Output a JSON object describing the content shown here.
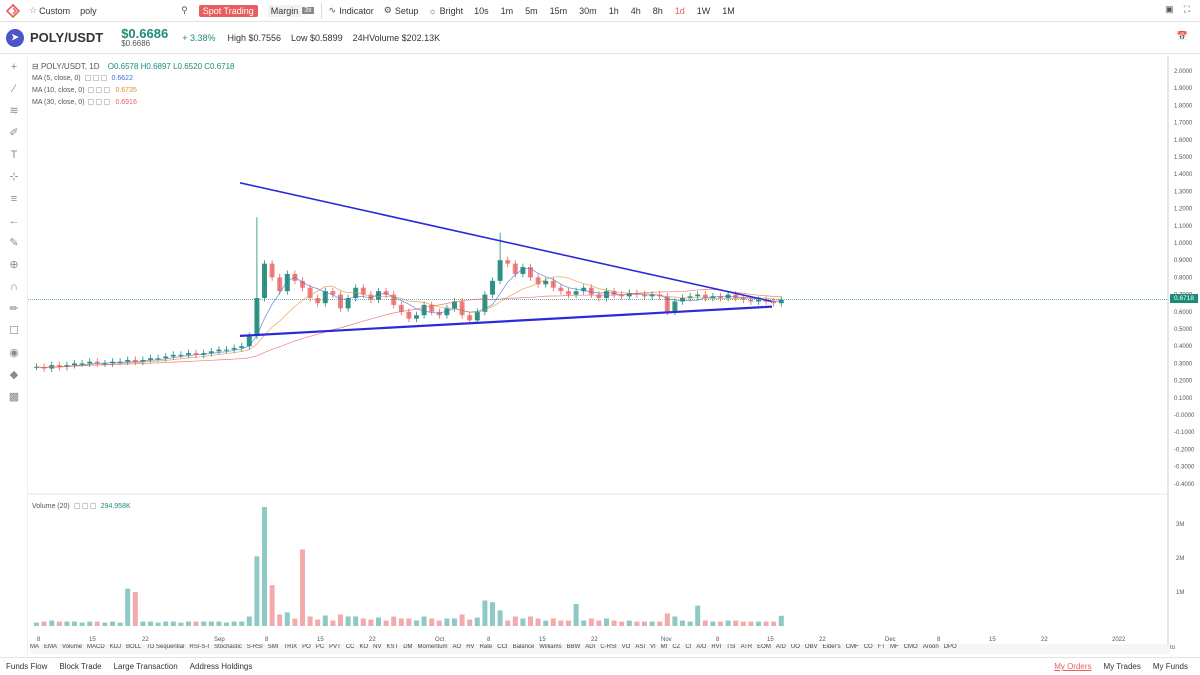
{
  "toolbar": {
    "custom_label": "Custom",
    "search_value": "poly",
    "spot_label": "Spot Trading",
    "margin_label": "Margin",
    "margin_suffix": "3x",
    "indicator_label": "Indicator",
    "setup_label": "Setup",
    "bright_label": "Bright",
    "timeframes": [
      "10s",
      "1m",
      "5m",
      "15m",
      "30m",
      "1h",
      "4h",
      "8h",
      "1d",
      "1W",
      "1M"
    ],
    "active_timeframe": "1d"
  },
  "header": {
    "pair": "POLY/USDT",
    "price": "$0.6686",
    "price_sub": "$0.6686",
    "change": "+ 3.38%",
    "high": "High $0.7556",
    "low": "Low $0.5899",
    "volume": "24HVolume $202.13K"
  },
  "legend": {
    "title": "POLY/USDT, 1D",
    "ohlc": "O0.6578  H0.6897  L0.6520  C0.6718",
    "ma5": {
      "label": "MA (5, close, 0)",
      "value": "0.6622",
      "color": "#3b6fd8"
    },
    "ma10": {
      "label": "MA (10, close, 0)",
      "value": "0.6735",
      "color": "#e0902a"
    },
    "ma30": {
      "label": "MA (30, close, 0)",
      "value": "0.6916",
      "color": "#e85d5d"
    },
    "volume_label": "Volume (20)",
    "volume_value": "294.958K"
  },
  "price_axis": [
    "2.0000",
    "1.9000",
    "1.8000",
    "1.7000",
    "1.6000",
    "1.5000",
    "1.4000",
    "1.3000",
    "1.2000",
    "1.1000",
    "1.0000",
    "0.9000",
    "0.8000",
    "0.7000",
    "0.6000",
    "0.5000",
    "0.4000",
    "0.3000",
    "0.2000",
    "0.1000",
    "-0.0000",
    "-0.1000",
    "-0.2000",
    "-0.3000",
    "-0.4000"
  ],
  "current_price_label": "0.6718",
  "volume_axis": [
    "3M",
    "2M",
    "1M"
  ],
  "date_axis": [
    "8",
    "15",
    "22",
    "Sep",
    "8",
    "15",
    "22",
    "Oct",
    "8",
    "15",
    "22",
    "Nov",
    "8",
    "15",
    "22",
    "Dec",
    "8",
    "15",
    "22",
    "2022"
  ],
  "axis_controls": [
    "%",
    "log",
    "auto"
  ],
  "indicators": [
    "MA",
    "EMA",
    "Volume",
    "MACD",
    "KDJ",
    "BOLL",
    "TD Sequential",
    "RSI-S-I",
    "Stochastic",
    "S-RSI",
    "SMI",
    "TRIX",
    "PO",
    "PC",
    "PVT",
    "CC",
    "KO",
    "NV",
    "KST",
    "DM",
    "Momentum",
    "AO",
    "HV",
    "Rate",
    "CCI",
    "Balance",
    "Williams",
    "BBW",
    "ADI",
    "C-RSI",
    "VO",
    "ASI",
    "VI",
    "MI",
    "CZ",
    "CI",
    "A/D",
    "RVI",
    "TSI",
    "ATR",
    "EOM",
    "A/D",
    "UO",
    "OBV",
    "Elder's",
    "CMF",
    "CO",
    "FT",
    "MF",
    "CMO",
    "Aroon",
    "DPO"
  ],
  "bottom": {
    "left": [
      "Funds Flow",
      "Block Trade",
      "Large Transaction",
      "Address Holdings"
    ],
    "right": [
      "My Orders",
      "My Trades",
      "My Funds"
    ],
    "active": "My Orders"
  },
  "colors": {
    "up": "#1e8a7a",
    "down": "#e85d5d",
    "trend": "#2b2bd8",
    "accent": "#e85d5d"
  },
  "chart_data": {
    "type": "candlestick",
    "title": "POLY/USDT, 1D",
    "ylim": [
      -0.4,
      2.0
    ],
    "candles_close_approx": [
      0.28,
      0.27,
      0.29,
      0.28,
      0.29,
      0.3,
      0.3,
      0.31,
      0.3,
      0.3,
      0.31,
      0.31,
      0.32,
      0.31,
      0.32,
      0.33,
      0.33,
      0.34,
      0.35,
      0.35,
      0.36,
      0.35,
      0.36,
      0.37,
      0.38,
      0.38,
      0.39,
      0.4,
      0.46,
      0.68,
      0.88,
      0.8,
      0.72,
      0.82,
      0.78,
      0.74,
      0.68,
      0.65,
      0.72,
      0.7,
      0.62,
      0.68,
      0.74,
      0.7,
      0.67,
      0.72,
      0.7,
      0.64,
      0.6,
      0.56,
      0.58,
      0.64,
      0.6,
      0.58,
      0.62,
      0.66,
      0.58,
      0.55,
      0.6,
      0.7,
      0.78,
      0.9,
      0.88,
      0.82,
      0.86,
      0.8,
      0.76,
      0.78,
      0.74,
      0.72,
      0.7,
      0.72,
      0.74,
      0.7,
      0.68,
      0.72,
      0.7,
      0.69,
      0.71,
      0.7,
      0.69,
      0.7,
      0.69,
      0.6,
      0.66,
      0.68,
      0.69,
      0.7,
      0.68,
      0.69,
      0.68,
      0.7,
      0.68,
      0.67,
      0.66,
      0.67,
      0.66,
      0.65,
      0.67
    ],
    "trendlines": [
      {
        "name": "upper",
        "from": {
          "date": "Sep 2",
          "price": 1.35
        },
        "to": {
          "date": "Nov 15",
          "price": 0.66
        }
      },
      {
        "name": "lower",
        "from": {
          "date": "Sep 2",
          "price": 0.46
        },
        "to": {
          "date": "Nov 15",
          "price": 0.63
        }
      }
    ]
  }
}
